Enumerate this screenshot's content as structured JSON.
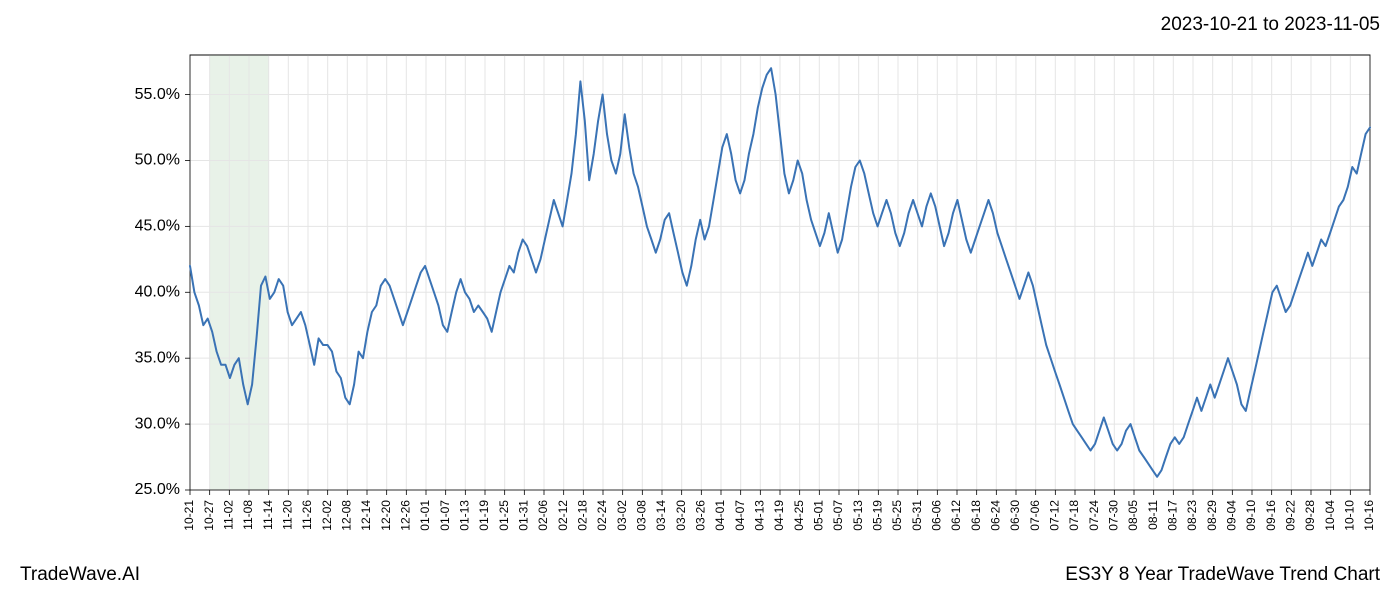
{
  "header": {
    "date_range": "2023-10-21 to 2023-11-05"
  },
  "footer": {
    "left": "TradeWave.AI",
    "right": "ES3Y 8 Year TradeWave Trend Chart"
  },
  "chart": {
    "type": "line",
    "background_color": "#ffffff",
    "grid_color": "#e5e5e5",
    "line_color": "#3a73b5",
    "line_width": 2,
    "highlight_band": {
      "start_index": 1,
      "end_index": 4,
      "fill_color": "#d8ead8",
      "opacity": 0.6
    },
    "ylim": [
      25,
      58
    ],
    "yticks": [
      25.0,
      30.0,
      35.0,
      40.0,
      45.0,
      50.0,
      55.0
    ],
    "ytick_labels": [
      "25.0%",
      "30.0%",
      "35.0%",
      "40.0%",
      "45.0%",
      "50.0%",
      "55.0%"
    ],
    "xtick_labels": [
      "10-21",
      "10-27",
      "11-02",
      "11-08",
      "11-14",
      "11-20",
      "11-26",
      "12-02",
      "12-08",
      "12-14",
      "12-20",
      "12-26",
      "01-01",
      "01-07",
      "01-13",
      "01-19",
      "01-25",
      "01-31",
      "02-06",
      "02-12",
      "02-18",
      "02-24",
      "03-02",
      "03-08",
      "03-14",
      "03-20",
      "03-26",
      "04-01",
      "04-07",
      "04-13",
      "04-19",
      "04-25",
      "05-01",
      "05-07",
      "05-13",
      "05-19",
      "05-25",
      "05-31",
      "06-06",
      "06-12",
      "06-18",
      "06-24",
      "06-30",
      "07-06",
      "07-12",
      "07-18",
      "07-24",
      "07-30",
      "08-05",
      "08-11",
      "08-17",
      "08-23",
      "08-29",
      "09-04",
      "09-10",
      "09-16",
      "09-22",
      "09-28",
      "10-04",
      "10-10",
      "10-16"
    ],
    "xtick_fontsize": 12,
    "ytick_fontsize": 16,
    "series": [
      42.0,
      40.0,
      39.0,
      37.5,
      38.0,
      37.0,
      35.5,
      34.5,
      34.5,
      33.5,
      34.5,
      35.0,
      33.0,
      31.5,
      33.0,
      36.5,
      40.5,
      41.2,
      39.5,
      40.0,
      41.0,
      40.5,
      38.5,
      37.5,
      38.0,
      38.5,
      37.5,
      36.0,
      34.5,
      36.5,
      36.0,
      36.0,
      35.5,
      34.0,
      33.5,
      32.0,
      31.5,
      33.0,
      35.5,
      35.0,
      37.0,
      38.5,
      39.0,
      40.5,
      41.0,
      40.5,
      39.5,
      38.5,
      37.5,
      38.5,
      39.5,
      40.5,
      41.5,
      42.0,
      41.0,
      40.0,
      39.0,
      37.5,
      37.0,
      38.5,
      40.0,
      41.0,
      40.0,
      39.5,
      38.5,
      39.0,
      38.5,
      38.0,
      37.0,
      38.5,
      40.0,
      41.0,
      42.0,
      41.5,
      43.0,
      44.0,
      43.5,
      42.5,
      41.5,
      42.5,
      44.0,
      45.5,
      47.0,
      46.0,
      45.0,
      47.0,
      49.0,
      52.0,
      56.0,
      53.0,
      48.5,
      50.5,
      53.0,
      55.0,
      52.0,
      50.0,
      49.0,
      50.5,
      53.5,
      51.0,
      49.0,
      48.0,
      46.5,
      45.0,
      44.0,
      43.0,
      44.0,
      45.5,
      46.0,
      44.5,
      43.0,
      41.5,
      40.5,
      42.0,
      44.0,
      45.5,
      44.0,
      45.0,
      47.0,
      49.0,
      51.0,
      52.0,
      50.5,
      48.5,
      47.5,
      48.5,
      50.5,
      52.0,
      54.0,
      55.5,
      56.5,
      57.0,
      55.0,
      52.0,
      49.0,
      47.5,
      48.5,
      50.0,
      49.0,
      47.0,
      45.5,
      44.5,
      43.5,
      44.5,
      46.0,
      44.5,
      43.0,
      44.0,
      46.0,
      48.0,
      49.5,
      50.0,
      49.0,
      47.5,
      46.0,
      45.0,
      46.0,
      47.0,
      46.0,
      44.5,
      43.5,
      44.5,
      46.0,
      47.0,
      46.0,
      45.0,
      46.5,
      47.5,
      46.5,
      45.0,
      43.5,
      44.5,
      46.0,
      47.0,
      45.5,
      44.0,
      43.0,
      44.0,
      45.0,
      46.0,
      47.0,
      46.0,
      44.5,
      43.5,
      42.5,
      41.5,
      40.5,
      39.5,
      40.5,
      41.5,
      40.5,
      39.0,
      37.5,
      36.0,
      35.0,
      34.0,
      33.0,
      32.0,
      31.0,
      30.0,
      29.5,
      29.0,
      28.5,
      28.0,
      28.5,
      29.5,
      30.5,
      29.5,
      28.5,
      28.0,
      28.5,
      29.5,
      30.0,
      29.0,
      28.0,
      27.5,
      27.0,
      26.5,
      26.0,
      26.5,
      27.5,
      28.5,
      29.0,
      28.5,
      29.0,
      30.0,
      31.0,
      32.0,
      31.0,
      32.0,
      33.0,
      32.0,
      33.0,
      34.0,
      35.0,
      34.0,
      33.0,
      31.5,
      31.0,
      32.5,
      34.0,
      35.5,
      37.0,
      38.5,
      40.0,
      40.5,
      39.5,
      38.5,
      39.0,
      40.0,
      41.0,
      42.0,
      43.0,
      42.0,
      43.0,
      44.0,
      43.5,
      44.5,
      45.5,
      46.5,
      47.0,
      48.0,
      49.5,
      49.0,
      50.5,
      52.0,
      52.5
    ]
  }
}
